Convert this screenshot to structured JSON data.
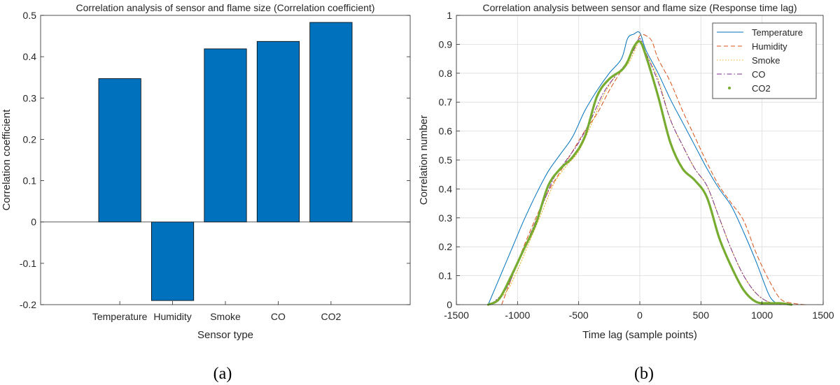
{
  "panels": [
    {
      "caption": "(a)"
    },
    {
      "caption": "(b)"
    }
  ],
  "colors": {
    "bar": "#0072BD",
    "temperature": "#0072BD",
    "humidity": "#D95319",
    "smoke": "#EDB120",
    "co": "#7E2F8E",
    "co2": "#77AC30",
    "grid": "#dcdcdc",
    "axis": "#262626"
  },
  "chart_data": [
    {
      "type": "bar",
      "title": "Correlation analysis of sensor and flame size (Correlation coefficient)",
      "xlabel": "Sensor type",
      "ylabel": "Correlation coefficient",
      "categories": [
        "Temperature",
        "Humidity",
        "Smoke",
        "CO",
        "CO2"
      ],
      "values": [
        0.347,
        -0.19,
        0.419,
        0.437,
        0.483
      ],
      "ylim": [
        -0.2,
        0.5
      ],
      "yticks": [
        -0.2,
        -0.1,
        0,
        0.1,
        0.2,
        0.3,
        0.4,
        0.5
      ],
      "grid": false
    },
    {
      "type": "line",
      "title": "Correlation analysis between sensor and flame size (Response time lag)",
      "xlabel": "Time lag (sample points)",
      "ylabel": "Correlation number",
      "xlim": [
        -1500,
        1500
      ],
      "ylim": [
        0,
        1
      ],
      "xticks": [
        -1500,
        -1000,
        -500,
        0,
        500,
        1000,
        1500
      ],
      "yticks": [
        0,
        0.1,
        0.2,
        0.3,
        0.4,
        0.5,
        0.6,
        0.7,
        0.8,
        0.9,
        1
      ],
      "grid": true,
      "legend_position": "top-right",
      "series": [
        {
          "name": "Temperature",
          "style": "solid",
          "color_key": "temperature",
          "x": [
            -1240,
            -1150,
            -1050,
            -950,
            -850,
            -750,
            -650,
            -550,
            -450,
            -350,
            -250,
            -150,
            -100,
            -50,
            0,
            50,
            150,
            250,
            350,
            450,
            550,
            650,
            750,
            850,
            950,
            1050,
            1100,
            1150
          ],
          "y": [
            0,
            0.09,
            0.19,
            0.29,
            0.38,
            0.46,
            0.52,
            0.58,
            0.67,
            0.74,
            0.8,
            0.85,
            0.92,
            0.935,
            0.94,
            0.88,
            0.8,
            0.71,
            0.63,
            0.55,
            0.47,
            0.4,
            0.34,
            0.25,
            0.15,
            0.04,
            0.01,
            0
          ]
        },
        {
          "name": "Humidity",
          "style": "dashed",
          "color_key": "humidity",
          "x": [
            -1130,
            -1050,
            -950,
            -850,
            -750,
            -650,
            -550,
            -450,
            -350,
            -250,
            -150,
            -50,
            0,
            50,
            100,
            150,
            250,
            350,
            450,
            550,
            650,
            750,
            850,
            950,
            1050,
            1150,
            1250,
            1350
          ],
          "y": [
            0,
            0.09,
            0.2,
            0.3,
            0.39,
            0.46,
            0.53,
            0.6,
            0.66,
            0.74,
            0.81,
            0.88,
            0.93,
            0.93,
            0.91,
            0.85,
            0.77,
            0.67,
            0.58,
            0.49,
            0.41,
            0.35,
            0.29,
            0.18,
            0.09,
            0.02,
            0.005,
            0
          ]
        },
        {
          "name": "Smoke",
          "style": "dotted",
          "color_key": "smoke",
          "x": [
            -1230,
            -1100,
            -1000,
            -900,
            -800,
            -700,
            -600,
            -500,
            -400,
            -300,
            -200,
            -100,
            -50,
            0,
            50,
            150,
            250,
            350,
            450,
            550,
            650,
            750,
            850,
            950,
            1050,
            1150,
            1250
          ],
          "y": [
            0,
            0.04,
            0.12,
            0.22,
            0.32,
            0.42,
            0.48,
            0.53,
            0.62,
            0.72,
            0.79,
            0.83,
            0.87,
            0.91,
            0.87,
            0.78,
            0.64,
            0.55,
            0.47,
            0.41,
            0.3,
            0.19,
            0.1,
            0.04,
            0.01,
            0.005,
            0
          ]
        },
        {
          "name": "CO",
          "style": "dashdot",
          "color_key": "co",
          "x": [
            -1220,
            -1100,
            -1000,
            -900,
            -800,
            -700,
            -600,
            -500,
            -400,
            -300,
            -200,
            -100,
            -50,
            0,
            50,
            150,
            250,
            350,
            450,
            550,
            650,
            750,
            850,
            950,
            1050,
            1150,
            1250
          ],
          "y": [
            0,
            0.05,
            0.14,
            0.24,
            0.34,
            0.44,
            0.5,
            0.56,
            0.64,
            0.73,
            0.79,
            0.84,
            0.88,
            0.92,
            0.87,
            0.77,
            0.64,
            0.55,
            0.47,
            0.41,
            0.3,
            0.19,
            0.1,
            0.04,
            0.01,
            0.005,
            0
          ]
        },
        {
          "name": "CO2",
          "style": "thick",
          "color_key": "co2",
          "x": [
            -1240,
            -1150,
            -1050,
            -950,
            -850,
            -750,
            -650,
            -550,
            -450,
            -350,
            -250,
            -150,
            -100,
            -50,
            0,
            50,
            150,
            250,
            350,
            450,
            550,
            650,
            750,
            850,
            950,
            1050,
            1150,
            1240
          ],
          "y": [
            0,
            0.02,
            0.1,
            0.19,
            0.28,
            0.41,
            0.47,
            0.51,
            0.58,
            0.72,
            0.78,
            0.81,
            0.84,
            0.89,
            0.91,
            0.86,
            0.72,
            0.56,
            0.47,
            0.43,
            0.37,
            0.23,
            0.13,
            0.05,
            0.01,
            0.005,
            0.005,
            0
          ]
        }
      ]
    }
  ]
}
